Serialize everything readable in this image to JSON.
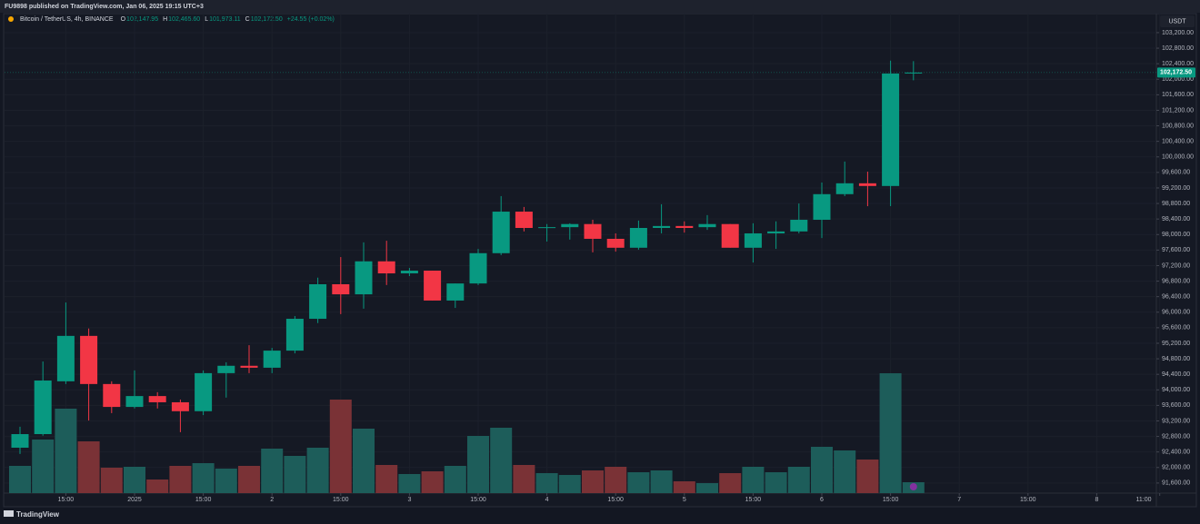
{
  "header": {
    "text": "FU9898 published on TradingView.com, Jan 06, 2025 19:15 UTC+3"
  },
  "legend": {
    "symbol": "Bitcoin / TetherUS, 4h, BINANCE",
    "items": [
      {
        "key": "O",
        "value": "102,147.95"
      },
      {
        "key": "H",
        "value": "102,465.60"
      },
      {
        "key": "L",
        "value": "101,973.11"
      },
      {
        "key": "C",
        "value": "102,172.50"
      }
    ],
    "change": "+24.55 (+0.02%)"
  },
  "footer": {
    "brand": "TradingView"
  },
  "chart_data": {
    "type": "candlestick",
    "currency": "USDT",
    "x": [
      0,
      1,
      2,
      3,
      4,
      5,
      6,
      7,
      8,
      9,
      10,
      11,
      12,
      13,
      14,
      15,
      16,
      17,
      18,
      19,
      20,
      21,
      22,
      23,
      24,
      25,
      26,
      27,
      28,
      29,
      30,
      31,
      32,
      33,
      34,
      35,
      36,
      37,
      38,
      39
    ],
    "open": [
      92510,
      92860,
      94220,
      95390,
      94150,
      93560,
      93840,
      93680,
      93450,
      94430,
      94620,
      94570,
      95010,
      95830,
      96720,
      96460,
      97310,
      97000,
      97070,
      96300,
      96740,
      97520,
      98590,
      98170,
      98190,
      98270,
      97890,
      97660,
      98170,
      98220,
      98190,
      98270,
      97660,
      98030,
      98080,
      98380,
      99040,
      99320,
      99250,
      102147.95
    ],
    "high": [
      93050,
      94730,
      96250,
      95580,
      94220,
      94500,
      93940,
      93750,
      94500,
      94710,
      95150,
      95080,
      95900,
      96890,
      97420,
      97800,
      97840,
      97140,
      97070,
      96740,
      97630,
      98990,
      98710,
      98270,
      98290,
      98380,
      98030,
      98360,
      98780,
      98340,
      98500,
      98270,
      98290,
      98340,
      98800,
      99340,
      99880,
      99620,
      102480,
      102465.6
    ],
    "low": [
      92350,
      92820,
      94150,
      93210,
      93400,
      93520,
      93520,
      92910,
      93350,
      93800,
      94430,
      94430,
      94940,
      95720,
      95950,
      96090,
      96700,
      96930,
      96300,
      96110,
      96700,
      97470,
      98080,
      97820,
      97870,
      97540,
      97560,
      97610,
      98030,
      98050,
      98120,
      97660,
      97280,
      97630,
      98030,
      97910,
      98990,
      98730,
      98730,
      101973.11
    ],
    "close": [
      92860,
      94240,
      95390,
      94150,
      93560,
      93840,
      93680,
      93450,
      94430,
      94620,
      94570,
      95010,
      95830,
      96720,
      96460,
      97310,
      97000,
      97070,
      96300,
      96740,
      97520,
      98590,
      98170,
      98190,
      98270,
      97890,
      97660,
      98170,
      98220,
      98170,
      98270,
      97660,
      98030,
      98080,
      98380,
      99040,
      99320,
      99250,
      102147.95,
      102172.5
    ],
    "volume": [
      30,
      59,
      93,
      57,
      28,
      29,
      15,
      30,
      33,
      27,
      30,
      49,
      41,
      50,
      103,
      71,
      31,
      21,
      24,
      30,
      63,
      72,
      31,
      22,
      20,
      25,
      29,
      23,
      25,
      13,
      11,
      22,
      29,
      23,
      29,
      51,
      47,
      37,
      132,
      12
    ],
    "vlim": [
      0,
      140
    ],
    "up_color": "#089981",
    "down_color": "#f23645",
    "up_volume_color": "#1d5d5a",
    "down_volume_color": "#7a3236",
    "last_label": "102,172.50",
    "ylim": [
      91340,
      103690
    ],
    "yticks": [
      {
        "value": 91600,
        "label": "91,600.00"
      },
      {
        "value": 92000,
        "label": "92,000.00"
      },
      {
        "value": 92400,
        "label": "92,400.00"
      },
      {
        "value": 92800,
        "label": "92,800.00"
      },
      {
        "value": 93200,
        "label": "93,200.00"
      },
      {
        "value": 93600,
        "label": "93,600.00"
      },
      {
        "value": 94000,
        "label": "94,000.00"
      },
      {
        "value": 94400,
        "label": "94,400.00"
      },
      {
        "value": 94800,
        "label": "94,800.00"
      },
      {
        "value": 95200,
        "label": "95,200.00"
      },
      {
        "value": 95600,
        "label": "95,600.00"
      },
      {
        "value": 96000,
        "label": "96,000.00"
      },
      {
        "value": 96400,
        "label": "96,400.00"
      },
      {
        "value": 96800,
        "label": "96,800.00"
      },
      {
        "value": 97200,
        "label": "97,200.00"
      },
      {
        "value": 97600,
        "label": "97,600.00"
      },
      {
        "value": 98000,
        "label": "98,000.00"
      },
      {
        "value": 98400,
        "label": "98,400.00"
      },
      {
        "value": 98800,
        "label": "98,800.00"
      },
      {
        "value": 99200,
        "label": "99,200.00"
      },
      {
        "value": 99600,
        "label": "99,600.00"
      },
      {
        "value": 100000,
        "label": "100,000.00"
      },
      {
        "value": 100400,
        "label": "100,400.00"
      },
      {
        "value": 100800,
        "label": "100,800.00"
      },
      {
        "value": 101200,
        "label": "101,200.00"
      },
      {
        "value": 101600,
        "label": "101,600.00"
      },
      {
        "value": 102000,
        "label": "102,000.00"
      },
      {
        "value": 102400,
        "label": "102,400.00"
      },
      {
        "value": 102800,
        "label": "102,800.00"
      },
      {
        "value": 103200,
        "label": "103,200.00"
      }
    ],
    "xticks": [
      {
        "value": 2,
        "label": "15:00"
      },
      {
        "value": 5,
        "label": "2025"
      },
      {
        "value": 8,
        "label": "15:00"
      },
      {
        "value": 11,
        "label": "2"
      },
      {
        "value": 14,
        "label": "15:00"
      },
      {
        "value": 17,
        "label": "3"
      },
      {
        "value": 20,
        "label": "15:00"
      },
      {
        "value": 23,
        "label": "4"
      },
      {
        "value": 26,
        "label": "15:00"
      },
      {
        "value": 29,
        "label": "5"
      },
      {
        "value": 32,
        "label": "15:00"
      },
      {
        "value": 35,
        "label": "6"
      },
      {
        "value": 38,
        "label": "15:00"
      },
      {
        "value": 41,
        "label": "7"
      },
      {
        "value": 44,
        "label": "15:00"
      },
      {
        "value": 47,
        "label": "8"
      },
      {
        "value": 49.75,
        "label": "11:00"
      }
    ],
    "grid": true
  }
}
